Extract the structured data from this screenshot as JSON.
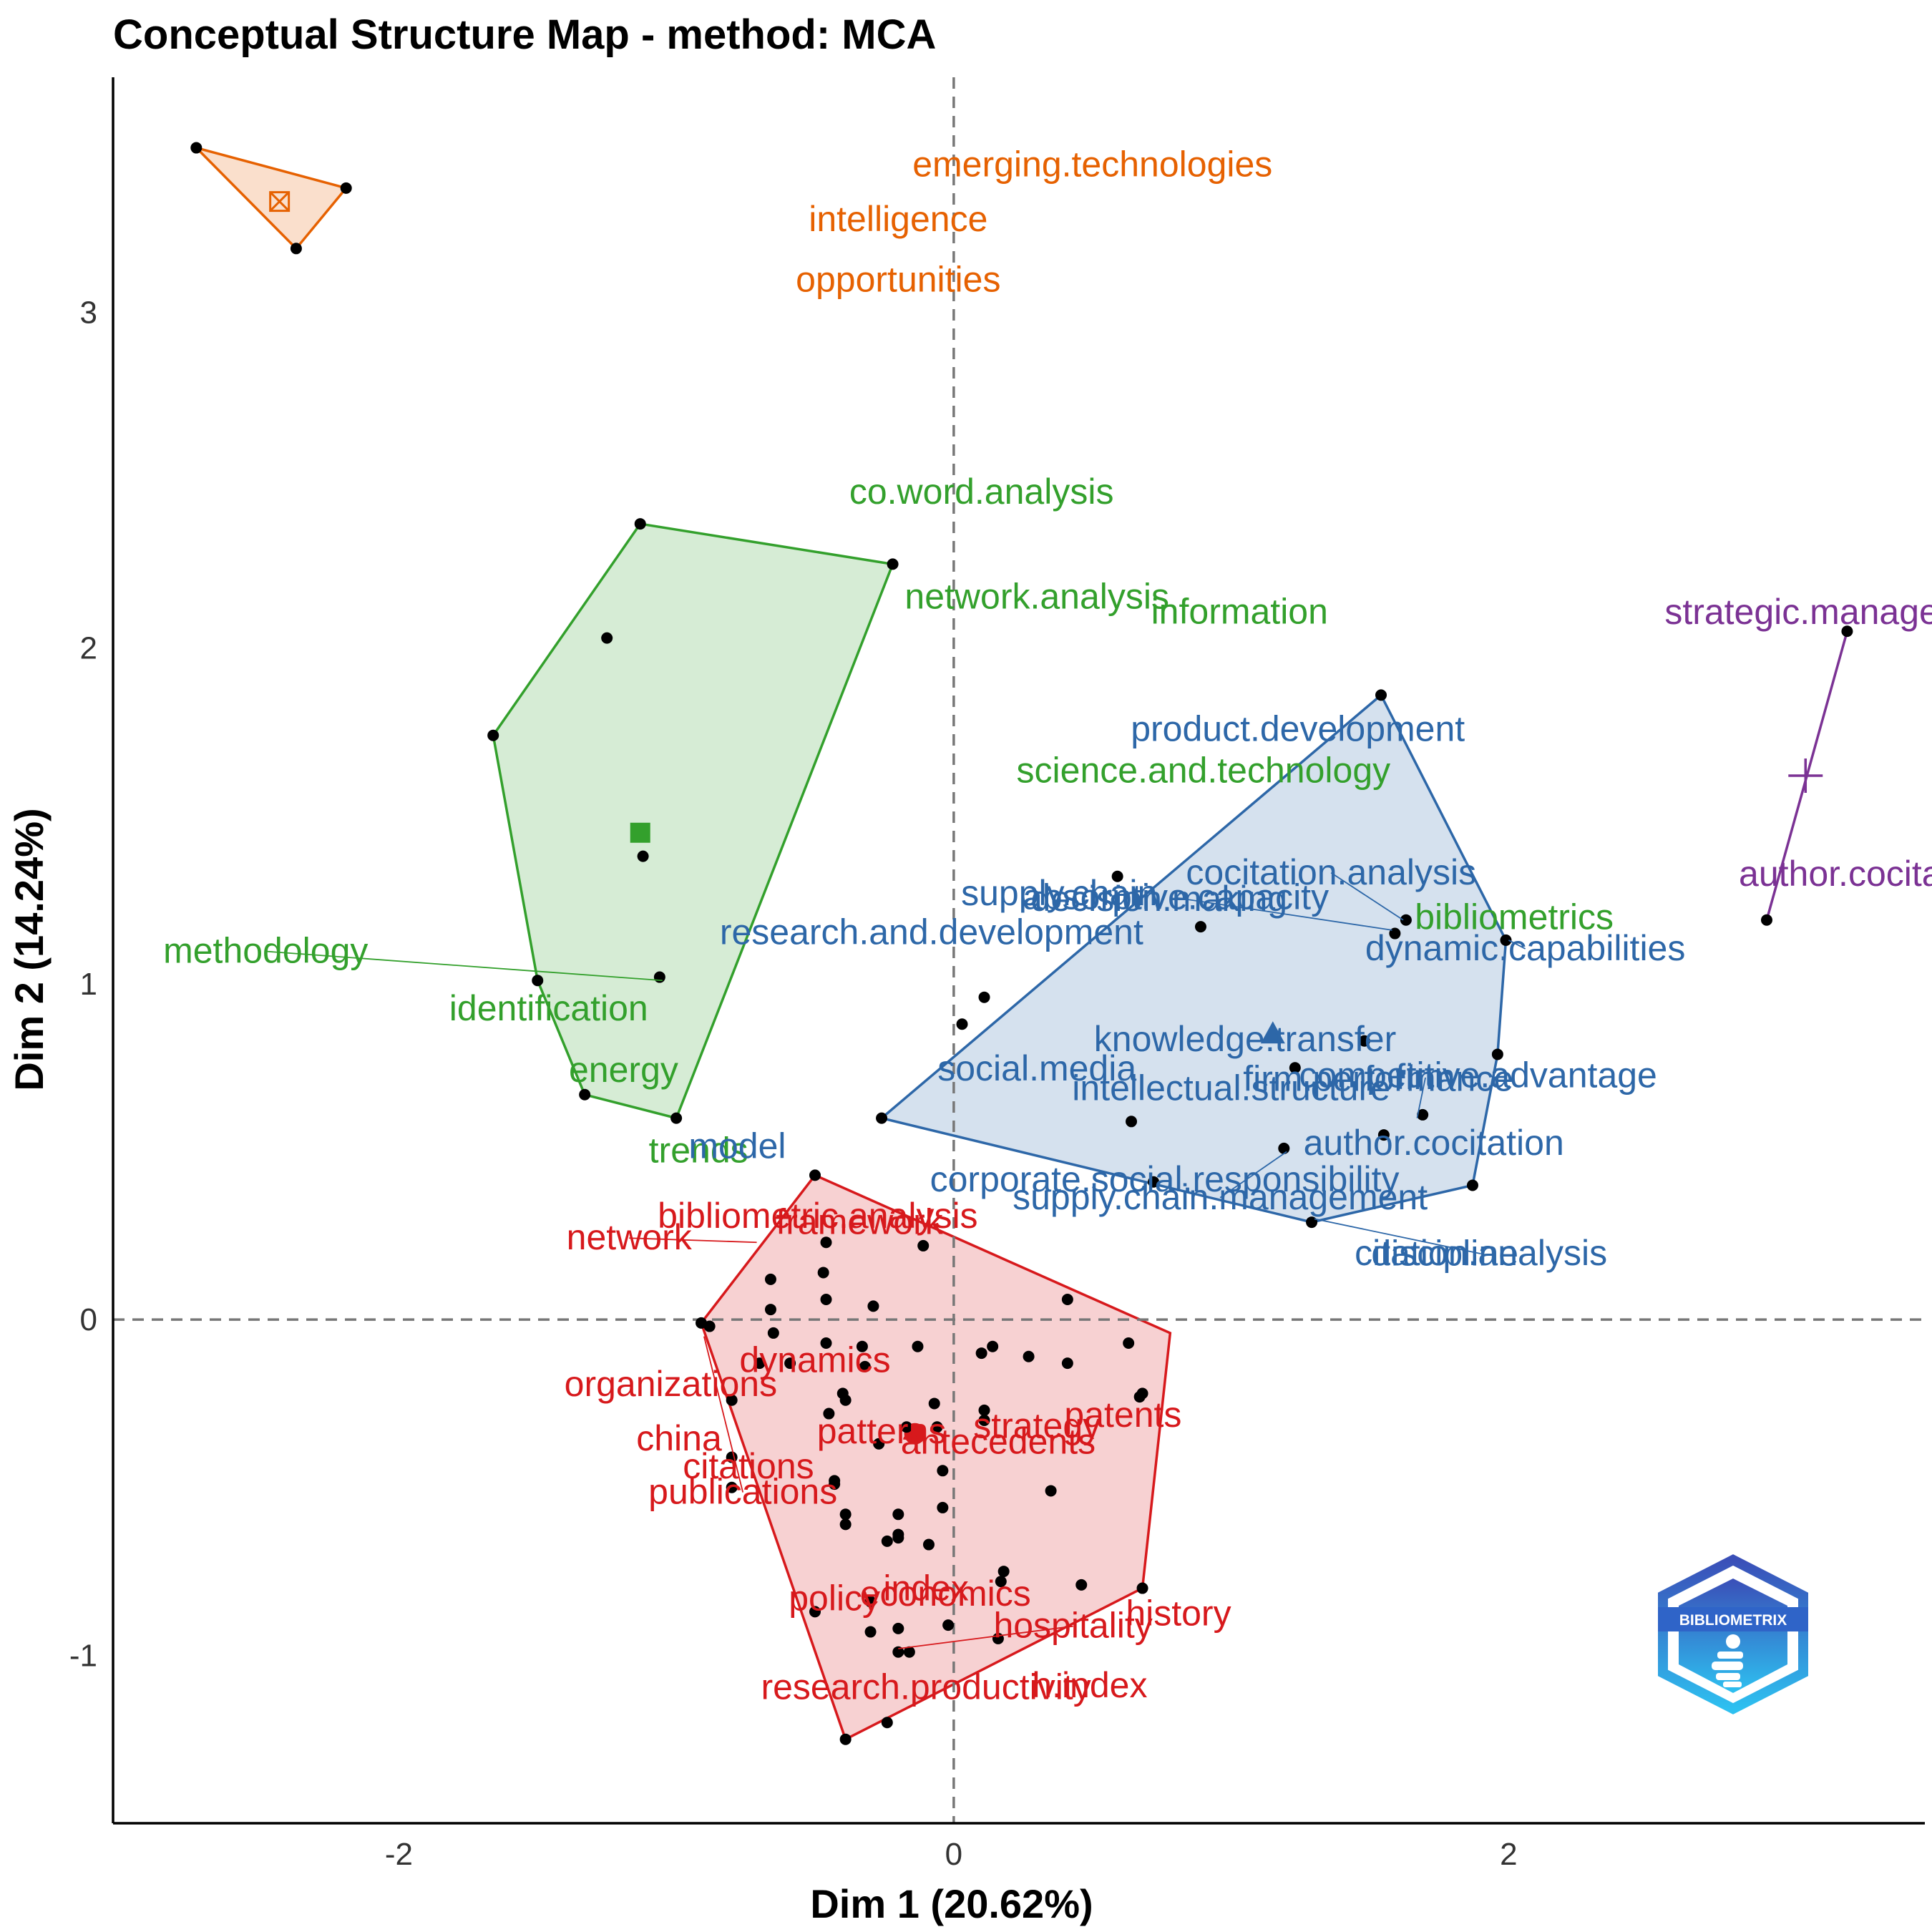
{
  "chart_data": {
    "type": "scatter",
    "title": "Conceptual Structure Map - method: MCA",
    "xlabel": "Dim 1 (20.62%)",
    "ylabel": "Dim 2 (14.24%)",
    "xlim": [
      -3.03,
      3.5
    ],
    "ylim": [
      -1.5,
      3.7
    ],
    "x_ticks": [
      -2,
      0,
      2
    ],
    "y_ticks": [
      -1,
      0,
      1,
      2,
      3
    ],
    "reference_lines": [
      {
        "axis": "x",
        "value": 0
      },
      {
        "axis": "y",
        "value": 0
      }
    ],
    "grid": false,
    "legend": "none",
    "watermark": "BIBLIOMETRIX",
    "clusters": [
      {
        "color": "#E66101",
        "centroid": [
          -2.43,
          3.33
        ],
        "hull": [
          [
            -2.73,
            3.49
          ],
          [
            -2.19,
            3.37
          ],
          [
            -2.37,
            3.19
          ]
        ],
        "terms": [
          {
            "label": "emerging.technologies",
            "x": -2.73,
            "y": 3.49
          },
          {
            "label": "intelligence",
            "x": -2.19,
            "y": 3.37
          },
          {
            "label": "opportunities",
            "x": -2.37,
            "y": 3.19
          }
        ]
      },
      {
        "color": "#33A02C",
        "centroid": [
          -1.13,
          1.45
        ],
        "hull": [
          [
            -1.13,
            2.37
          ],
          [
            -0.22,
            2.25
          ],
          [
            -1.0,
            0.6
          ],
          [
            -1.33,
            0.67
          ],
          [
            -1.5,
            1.01
          ],
          [
            -1.66,
            1.74
          ]
        ],
        "terms": [
          {
            "label": "co.word.analysis",
            "x": -1.13,
            "y": 2.37
          },
          {
            "label": "network.analysis",
            "x": -0.22,
            "y": 2.25
          },
          {
            "label": "information",
            "x": -1.25,
            "y": 2.03
          },
          {
            "label": "science.and.technology",
            "x": -1.66,
            "y": 1.74
          },
          {
            "label": "bibliometrics",
            "x": -1.12,
            "y": 1.38
          },
          {
            "label": "methodology",
            "x": -1.06,
            "y": 1.02
          },
          {
            "label": "identification",
            "x": -1.5,
            "y": 1.01
          },
          {
            "label": "energy",
            "x": -1.33,
            "y": 0.67
          },
          {
            "label": "trends",
            "x": -1.0,
            "y": 0.6
          }
        ]
      },
      {
        "color": "#2D67A8",
        "centroid": [
          1.15,
          0.85
        ],
        "hull": [
          [
            1.54,
            1.86
          ],
          [
            1.99,
            1.13
          ],
          [
            1.96,
            0.79
          ],
          [
            1.87,
            0.4
          ],
          [
            1.29,
            0.29
          ],
          [
            -0.26,
            0.6
          ]
        ],
        "terms": [
          {
            "label": "product.development",
            "x": 1.54,
            "y": 1.86
          },
          {
            "label": "supply.chain",
            "x": 0.59,
            "y": 1.32
          },
          {
            "label": "cocitation.analysis",
            "x": 1.63,
            "y": 1.19
          },
          {
            "label": "decision.making",
            "x": 0.89,
            "y": 1.17
          },
          {
            "label": "absorptive.capacity",
            "x": 1.59,
            "y": 1.15
          },
          {
            "label": "dynamic.capabilities",
            "x": 1.99,
            "y": 1.13
          },
          {
            "label": "research.and.development",
            "x": 0.11,
            "y": 0.96
          },
          {
            "label": "knowledge.transfer",
            "x": 0.03,
            "y": 0.88
          },
          {
            "label": "firm.performance",
            "x": 1.48,
            "y": 0.83
          },
          {
            "label": "competitive.advantage",
            "x": 1.96,
            "y": 0.79
          },
          {
            "label": "social.media",
            "x": 1.23,
            "y": 0.75
          },
          {
            "label": "model",
            "x": -0.26,
            "y": 0.6
          },
          {
            "label": "firm",
            "x": 1.69,
            "y": 0.61
          },
          {
            "label": "intellectual.structure",
            "x": 0.64,
            "y": 0.59
          },
          {
            "label": "author.cocitation",
            "x": 1.55,
            "y": 0.55
          },
          {
            "label": "corporate.social.responsibility",
            "x": 1.19,
            "y": 0.51
          },
          {
            "label": "supply.chain.management",
            "x": 0.72,
            "y": 0.41
          },
          {
            "label": "discipline",
            "x": 1.87,
            "y": 0.4
          },
          {
            "label": "citation.analysis",
            "x": 1.29,
            "y": 0.29
          }
        ]
      },
      {
        "color": "#7B3294",
        "centroid": [
          3.07,
          1.62
        ],
        "hull": [
          [
            3.22,
            2.05
          ],
          [
            2.93,
            1.19
          ]
        ],
        "terms": [
          {
            "label": "strategic.management",
            "x": 3.22,
            "y": 2.05
          },
          {
            "label": "author.cocitation.analysis",
            "x": 2.93,
            "y": 1.19
          }
        ]
      },
      {
        "color": "#D7191C",
        "centroid": [
          -0.14,
          -0.34
        ],
        "hull": [
          [
            -0.5,
            0.43
          ],
          [
            0.78,
            -0.04
          ],
          [
            0.68,
            -0.8
          ],
          [
            -0.39,
            -1.25
          ],
          [
            -0.91,
            -0.01
          ]
        ],
        "terms": [
          {
            "label": "framework",
            "x": -0.5,
            "y": 0.43
          },
          {
            "label": "bibliometric.analysis",
            "x": -0.11,
            "y": 0.22
          },
          {
            "label": "network",
            "x": -0.46,
            "y": 0.23
          },
          {
            "label": "dynamics",
            "x": -0.29,
            "y": 0.04
          },
          {
            "label": "organizations",
            "x": 0.41,
            "y": 0.06
          },
          {
            "label": "patents",
            "x": -0.91,
            "y": -0.01
          },
          {
            "label": "patterns",
            "x": -0.59,
            "y": -0.13
          },
          {
            "label": "strategy",
            "x": 0.68,
            "y": -0.22
          },
          {
            "label": "publications",
            "x": -0.8,
            "y": -0.41
          },
          {
            "label": "citations",
            "x": -0.43,
            "y": -0.49
          },
          {
            "label": "china",
            "x": -0.8,
            "y": -0.5
          },
          {
            "label": "antecedents",
            "x": 0.35,
            "y": -0.51
          },
          {
            "label": "history",
            "x": 0.68,
            "y": -0.8
          },
          {
            "label": "policy",
            "x": -0.5,
            "y": -0.87
          },
          {
            "label": "index",
            "x": -0.3,
            "y": -0.84
          },
          {
            "label": "economics",
            "x": 0.16,
            "y": -0.95
          },
          {
            "label": "hospitality",
            "x": -0.2,
            "y": -0.99
          },
          {
            "label": "h.index",
            "x": -0.24,
            "y": -1.2
          },
          {
            "label": "research.productivity",
            "x": -0.39,
            "y": -1.25
          }
        ],
        "extra_points": [
          [
            -0.66,
            0.12
          ],
          [
            -0.47,
            0.14
          ],
          [
            -0.46,
            0.06
          ],
          [
            -0.66,
            0.03
          ],
          [
            -0.88,
            -0.02
          ],
          [
            -0.65,
            -0.04
          ],
          [
            -0.46,
            -0.07
          ],
          [
            -0.33,
            -0.08
          ],
          [
            -0.13,
            -0.08
          ],
          [
            0.14,
            -0.08
          ],
          [
            0.1,
            -0.1
          ],
          [
            0.27,
            -0.11
          ],
          [
            -0.32,
            -0.14
          ],
          [
            -0.7,
            -0.13
          ],
          [
            0.41,
            -0.13
          ],
          [
            0.63,
            -0.07
          ],
          [
            -0.4,
            -0.22
          ],
          [
            -0.39,
            -0.24
          ],
          [
            0.67,
            -0.23
          ],
          [
            -0.8,
            -0.24
          ],
          [
            -0.07,
            -0.25
          ],
          [
            0.11,
            -0.27
          ],
          [
            -0.45,
            -0.28
          ],
          [
            0.11,
            -0.3
          ],
          [
            -0.17,
            -0.32
          ],
          [
            -0.06,
            -0.32
          ],
          [
            -0.27,
            -0.37
          ],
          [
            -0.04,
            -0.45
          ],
          [
            -0.43,
            -0.48
          ],
          [
            -0.2,
            -0.58
          ],
          [
            -0.39,
            -0.58
          ],
          [
            -0.2,
            -0.64
          ],
          [
            -0.24,
            -0.66
          ],
          [
            -0.39,
            -0.61
          ],
          [
            -0.2,
            -0.65
          ],
          [
            -0.09,
            -0.67
          ],
          [
            0.18,
            -0.75
          ],
          [
            0.17,
            -0.78
          ],
          [
            0.46,
            -0.79
          ],
          [
            -0.3,
            -0.93
          ],
          [
            -0.2,
            -0.92
          ],
          [
            -0.16,
            -0.99
          ],
          [
            -0.02,
            -0.91
          ],
          [
            -0.04,
            -0.56
          ]
        ]
      }
    ]
  }
}
